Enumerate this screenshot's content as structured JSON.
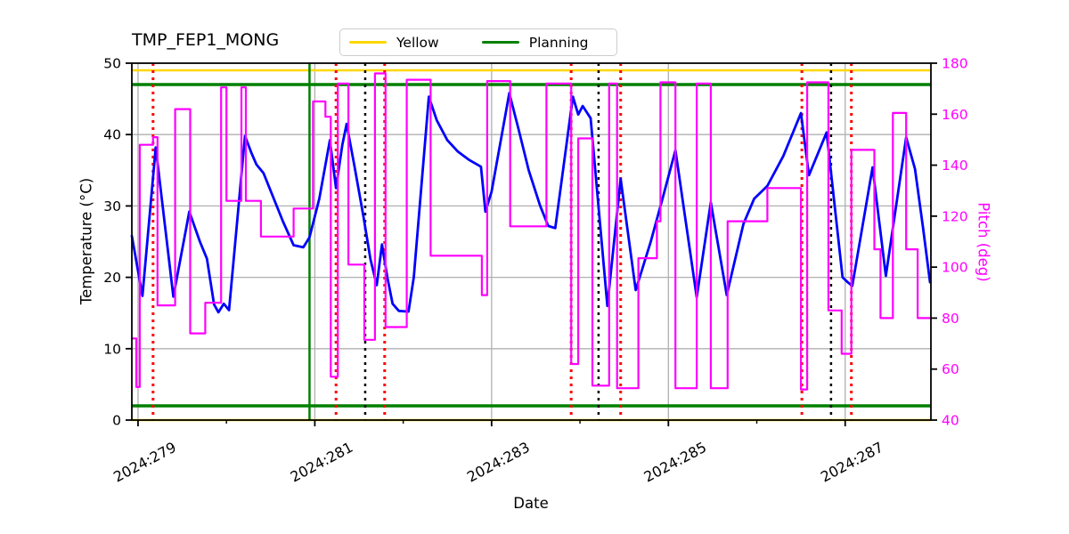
{
  "figure": {
    "title": "TMP_FEP1_MONG",
    "xlabel": "Date",
    "ylabel_left": "Temperature (°C)",
    "ylabel_right": "Pitch (deg)",
    "legend": [
      {
        "label": "Yellow",
        "color": "#ffd700"
      },
      {
        "label": "Planning",
        "color": "#008000"
      }
    ]
  },
  "chart_data": {
    "type": "line",
    "title": "TMP_FEP1_MONG",
    "xlabel": "Date",
    "grid": true,
    "legend_position": "top-center",
    "colors": {
      "temperature": "#0000ff",
      "pitch": "#ff00ff",
      "yellow_limit": "#ffd700",
      "planning_limit": "#008000",
      "red_event": "#ff0000",
      "black_event": "#000000",
      "grid": "#b0b0b0",
      "spine": "#000000"
    },
    "x_axis": {
      "label": "Date",
      "range": [
        278.93,
        287.97
      ],
      "major_ticks": [
        {
          "value": 279,
          "label": "2024:279"
        },
        {
          "value": 281,
          "label": "2024:281"
        },
        {
          "value": 283,
          "label": "2024:283"
        },
        {
          "value": 285,
          "label": "2024:285"
        },
        {
          "value": 287,
          "label": "2024:287"
        }
      ],
      "minor_ticks": [
        280,
        282,
        284,
        286
      ]
    },
    "left_axis": {
      "label": "Temperature (°C)",
      "range": [
        0,
        50
      ],
      "ticks": [
        0,
        10,
        20,
        30,
        40,
        50
      ],
      "color": "#000000"
    },
    "right_axis": {
      "label": "Pitch (deg)",
      "range": [
        40,
        180
      ],
      "ticks": [
        40,
        60,
        80,
        100,
        120,
        140,
        160,
        180
      ],
      "color": "#ff00ff"
    },
    "series": [
      {
        "name": "Temperature",
        "axis": "left",
        "type": "line",
        "color": "#0000ff",
        "width": 2.8,
        "points": [
          [
            278.93,
            25.8
          ],
          [
            279.05,
            17.4
          ],
          [
            279.2,
            38.2
          ],
          [
            279.4,
            17.3
          ],
          [
            279.58,
            29.2
          ],
          [
            279.7,
            25.0
          ],
          [
            279.78,
            22.6
          ],
          [
            279.86,
            16.2
          ],
          [
            279.91,
            15.1
          ],
          [
            279.97,
            16.3
          ],
          [
            280.03,
            15.4
          ],
          [
            280.21,
            39.8
          ],
          [
            280.28,
            37.5
          ],
          [
            280.34,
            35.8
          ],
          [
            280.42,
            34.6
          ],
          [
            280.52,
            31.5
          ],
          [
            280.64,
            27.8
          ],
          [
            280.76,
            24.5
          ],
          [
            280.87,
            24.2
          ],
          [
            280.94,
            25.6
          ],
          [
            281.05,
            31.0
          ],
          [
            281.17,
            39.2
          ],
          [
            281.24,
            32.5
          ],
          [
            281.31,
            38.5
          ],
          [
            281.36,
            41.5
          ],
          [
            281.45,
            35.5
          ],
          [
            281.55,
            28.5
          ],
          [
            281.63,
            22.5
          ],
          [
            281.7,
            18.9
          ],
          [
            281.76,
            24.6
          ],
          [
            281.82,
            20.0
          ],
          [
            281.88,
            16.3
          ],
          [
            281.95,
            15.3
          ],
          [
            282.06,
            15.2
          ],
          [
            282.12,
            20.0
          ],
          [
            282.29,
            45.3
          ],
          [
            282.38,
            42.0
          ],
          [
            282.5,
            39.2
          ],
          [
            282.62,
            37.6
          ],
          [
            282.74,
            36.5
          ],
          [
            282.88,
            35.5
          ],
          [
            282.93,
            29.2
          ],
          [
            283.0,
            32.0
          ],
          [
            283.2,
            45.8
          ],
          [
            283.3,
            41.0
          ],
          [
            283.42,
            35.0
          ],
          [
            283.55,
            30.0
          ],
          [
            283.64,
            27.2
          ],
          [
            283.72,
            26.9
          ],
          [
            283.92,
            45.3
          ],
          [
            283.98,
            42.8
          ],
          [
            284.03,
            44.0
          ],
          [
            284.12,
            42.3
          ],
          [
            284.31,
            16.0
          ],
          [
            284.46,
            33.8
          ],
          [
            284.63,
            18.2
          ],
          [
            284.8,
            25.0
          ],
          [
            284.94,
            31.3
          ],
          [
            285.08,
            37.8
          ],
          [
            285.32,
            17.2
          ],
          [
            285.48,
            30.5
          ],
          [
            285.66,
            17.5
          ],
          [
            285.85,
            27.5
          ],
          [
            285.97,
            31.0
          ],
          [
            286.12,
            32.8
          ],
          [
            286.3,
            37.0
          ],
          [
            286.5,
            43.0
          ],
          [
            286.59,
            34.3
          ],
          [
            286.79,
            40.3
          ],
          [
            286.97,
            20.0
          ],
          [
            287.03,
            19.3
          ],
          [
            287.08,
            18.8
          ],
          [
            287.31,
            35.4
          ],
          [
            287.46,
            20.2
          ],
          [
            287.69,
            39.6
          ],
          [
            287.79,
            35.2
          ],
          [
            287.88,
            27.0
          ],
          [
            287.96,
            19.3
          ]
        ]
      },
      {
        "name": "Pitch",
        "axis": "right",
        "type": "step-post",
        "color": "#ff00ff",
        "width": 2.2,
        "points": [
          [
            278.93,
            72
          ],
          [
            278.98,
            53
          ],
          [
            279.02,
            148
          ],
          [
            279.17,
            151
          ],
          [
            279.22,
            85
          ],
          [
            279.42,
            162
          ],
          [
            279.59,
            74
          ],
          [
            279.76,
            86
          ],
          [
            279.94,
            170.5
          ],
          [
            280.0,
            126
          ],
          [
            280.17,
            170.5
          ],
          [
            280.22,
            126
          ],
          [
            280.39,
            112
          ],
          [
            280.76,
            123
          ],
          [
            280.98,
            165
          ],
          [
            281.12,
            159
          ],
          [
            281.18,
            57
          ],
          [
            281.26,
            172
          ],
          [
            281.38,
            101
          ],
          [
            281.56,
            71.5
          ],
          [
            281.68,
            176
          ],
          [
            281.8,
            76.5
          ],
          [
            282.04,
            173.5
          ],
          [
            282.31,
            104.5
          ],
          [
            282.89,
            89
          ],
          [
            282.95,
            173
          ],
          [
            283.21,
            116
          ],
          [
            283.62,
            172
          ],
          [
            283.9,
            62
          ],
          [
            283.98,
            150.5
          ],
          [
            284.14,
            53.5
          ],
          [
            284.33,
            172
          ],
          [
            284.42,
            52.5
          ],
          [
            284.66,
            103.5
          ],
          [
            284.87,
            118
          ],
          [
            284.91,
            172.5
          ],
          [
            285.08,
            52.5
          ],
          [
            285.32,
            172
          ],
          [
            285.48,
            52.5
          ],
          [
            285.67,
            118
          ],
          [
            286.12,
            131
          ],
          [
            286.5,
            52
          ],
          [
            286.57,
            172.5
          ],
          [
            286.81,
            83
          ],
          [
            286.96,
            66
          ],
          [
            287.07,
            146
          ],
          [
            287.33,
            107
          ],
          [
            287.4,
            80
          ],
          [
            287.54,
            160.5
          ],
          [
            287.69,
            107
          ],
          [
            287.82,
            80
          ],
          [
            287.97,
            80
          ]
        ]
      }
    ],
    "limit_lines": [
      {
        "name": "Yellow",
        "axis": "left",
        "values": [
          49,
          0
        ],
        "color": "#ffd700",
        "width": 2.5
      },
      {
        "name": "Planning",
        "axis": "left",
        "values": [
          47,
          2
        ],
        "color": "#008000",
        "width": 3.5
      }
    ],
    "vlines": [
      {
        "name": "green-solid",
        "color": "#008000",
        "style": "solid",
        "width": 2.5,
        "values": [
          280.94
        ]
      },
      {
        "name": "black-dotted",
        "color": "#000000",
        "style": "dotted",
        "width": 2.5,
        "values": [
          281.57,
          284.21,
          286.84
        ]
      },
      {
        "name": "red-dotted",
        "color": "#ff0000",
        "style": "dotted",
        "width": 3,
        "values": [
          279.17,
          281.24,
          281.79,
          283.9,
          284.46,
          286.51,
          287.07
        ]
      }
    ]
  }
}
